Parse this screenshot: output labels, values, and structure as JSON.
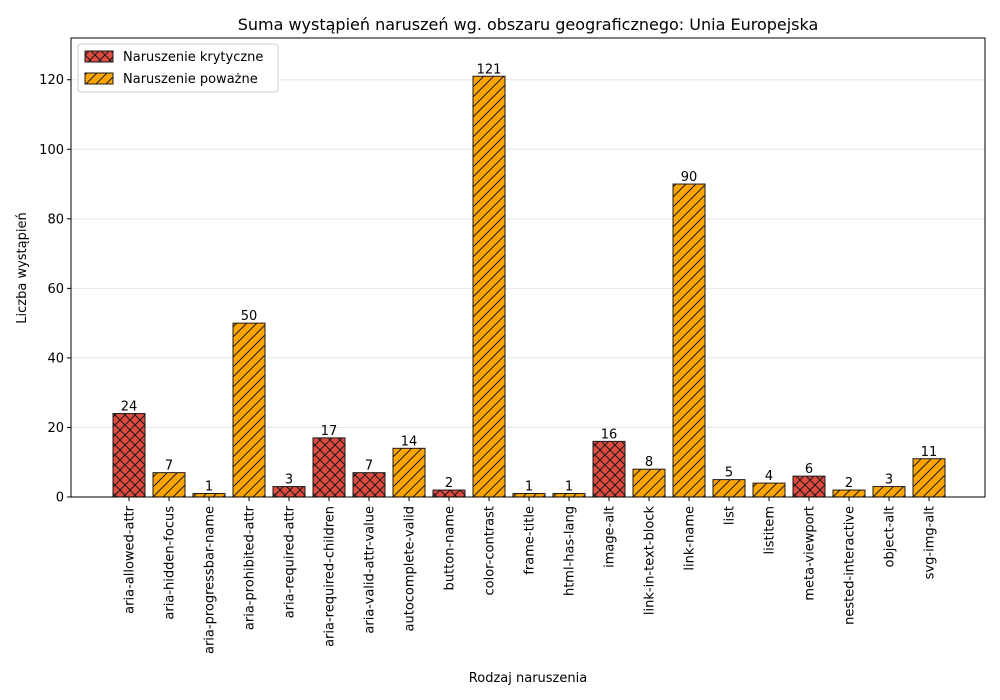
{
  "chart_data": {
    "type": "bar",
    "title": "Suma wystąpień naruszeń wg. obszaru geograficznego: Unia Europejska",
    "xlabel": "Rodzaj naruszenia",
    "ylabel": "Liczba wystąpień",
    "ylim": [
      0,
      132
    ],
    "yticks": [
      0,
      20,
      40,
      60,
      80,
      100,
      120
    ],
    "grid": "horizontal",
    "legend_position": "top-left",
    "categories": [
      "aria-allowed-attr",
      "aria-hidden-focus",
      "aria-progressbar-name",
      "aria-prohibited-attr",
      "aria-required-attr",
      "aria-required-children",
      "aria-valid-attr-value",
      "autocomplete-valid",
      "button-name",
      "color-contrast",
      "frame-title",
      "html-has-lang",
      "image-alt",
      "link-in-text-block",
      "link-name",
      "list",
      "listitem",
      "meta-viewport",
      "nested-interactive",
      "object-alt",
      "svg-img-alt"
    ],
    "values": [
      24,
      7,
      1,
      50,
      3,
      17,
      7,
      14,
      2,
      121,
      1,
      1,
      16,
      8,
      90,
      5,
      4,
      6,
      2,
      3,
      11
    ],
    "severity": [
      "krytyczne",
      "powazne",
      "powazne",
      "powazne",
      "krytyczne",
      "krytyczne",
      "krytyczne",
      "powazne",
      "krytyczne",
      "powazne",
      "powazne",
      "powazne",
      "krytyczne",
      "powazne",
      "powazne",
      "powazne",
      "powazne",
      "krytyczne",
      "powazne",
      "powazne",
      "powazne"
    ],
    "series": [
      {
        "key": "krytyczne",
        "name": "Naruszenie krytyczne",
        "color": "#e04b3f",
        "hatch": "cross"
      },
      {
        "key": "powazne",
        "name": "Naruszenie poważne",
        "color": "#ffa500",
        "hatch": "diagonal"
      }
    ]
  }
}
